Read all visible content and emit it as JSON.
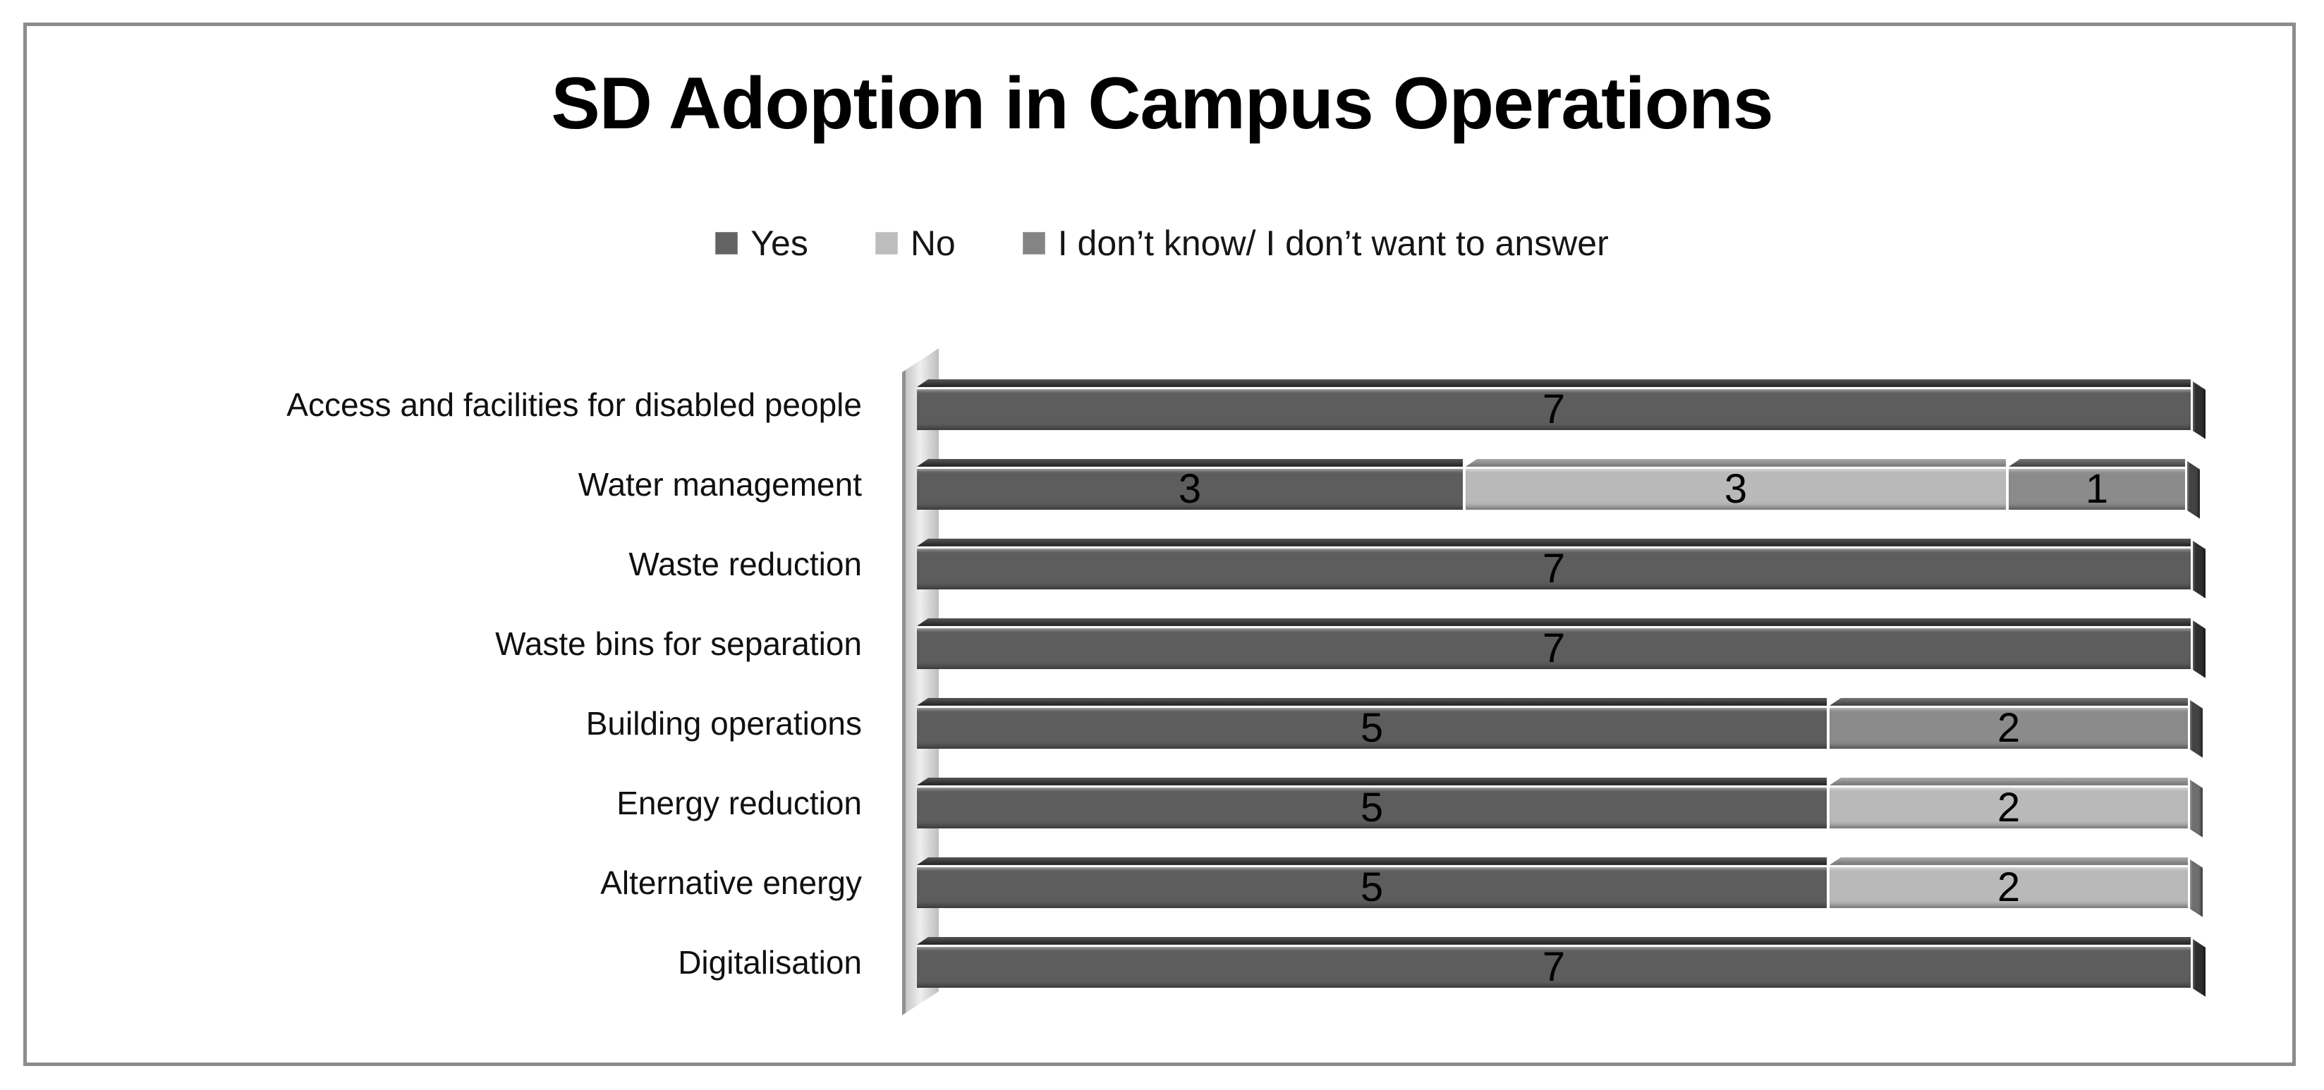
{
  "title": "SD Adoption in Campus Operations",
  "legend": {
    "items": [
      {
        "key": "yes",
        "label": "Yes"
      },
      {
        "key": "no",
        "label": "No"
      },
      {
        "key": "idk",
        "label": "I don’t know/ I don’t want to answer"
      }
    ]
  },
  "series_styles": {
    "yes": {
      "face": "#5d5d5d",
      "top": "#2b2b2b",
      "cap": "#2e2e2e",
      "swatch": "#636363"
    },
    "no": {
      "face": "#b9b9b9",
      "top": "#949494",
      "cap": "#6f6f6f",
      "swatch": "#bdbdbd"
    },
    "idk": {
      "face": "#8b8b8b",
      "top": "#525252",
      "cap": "#434343",
      "swatch": "#848484"
    }
  },
  "chart_data": {
    "type": "bar",
    "orientation": "horizontal_stacked",
    "title": "SD Adoption in Campus Operations",
    "categories": [
      "Access and facilities for disabled people",
      "Water management",
      "Waste reduction",
      "Waste bins for separation",
      "Building operations",
      "Energy reduction",
      "Alternative energy",
      "Digitalisation"
    ],
    "series": [
      {
        "key": "yes",
        "name": "Yes",
        "values": [
          7,
          3,
          7,
          7,
          5,
          5,
          5,
          7
        ]
      },
      {
        "key": "no",
        "name": "No",
        "values": [
          0,
          3,
          0,
          0,
          0,
          2,
          2,
          0
        ]
      },
      {
        "key": "idk",
        "name": "I don’t know/ I don’t want to answer",
        "values": [
          0,
          1,
          0,
          0,
          2,
          0,
          0,
          0
        ]
      }
    ],
    "xlim": [
      0,
      7
    ],
    "value_labels_shown": true,
    "legend_position": "top",
    "gridlines": false,
    "style": "3d-grayscale"
  }
}
